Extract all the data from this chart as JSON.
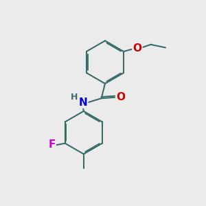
{
  "background_color": "#ebebeb",
  "bond_color": "#3a6b6b",
  "bond_width": 1.5,
  "dbo": 0.055,
  "atom_colors": {
    "O": "#cc0000",
    "N": "#0000cc",
    "F": "#cc00cc",
    "H": "#3a6b6b",
    "C": "#3a6b6b"
  },
  "font_size": 10,
  "figsize": [
    3.0,
    3.0
  ],
  "dpi": 100
}
